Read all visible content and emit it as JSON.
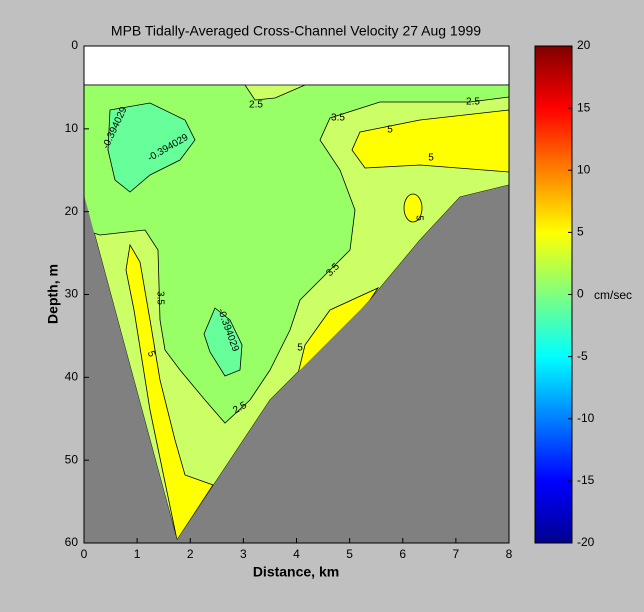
{
  "chart_data": {
    "type": "contour",
    "title": "MPB   Tidally-Averaged  Cross-Channel Velocity   27 Aug 1999",
    "x_label": "Distance, km",
    "y_label": "Depth, m",
    "xlim": [
      0,
      8
    ],
    "xticks": [
      0,
      1,
      2,
      3,
      4,
      5,
      6,
      7,
      8
    ],
    "ylim": [
      0,
      60
    ],
    "yticks": [
      0,
      10,
      20,
      30,
      40,
      50,
      60
    ],
    "levels": [
      -0.394029,
      2.5,
      3.5,
      5
    ],
    "band_colors": [
      "#66ff99",
      "#99ff66",
      "#ccff66",
      "#ffff00"
    ],
    "colorbar": {
      "label": "cm/sec",
      "lim": [
        -20,
        20
      ],
      "ticks": [
        -20,
        -15,
        -10,
        -5,
        0,
        5,
        10,
        15,
        20
      ]
    }
  }
}
